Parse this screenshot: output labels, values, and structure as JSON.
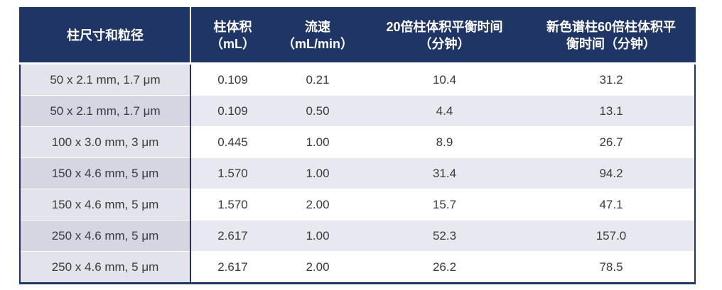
{
  "colors": {
    "header_bg": "#1f3565",
    "header_text": "#ffffff",
    "body_text": "#3a3a3c",
    "col1_odd_bg": "#e2e3eb",
    "col1_even_bg": "#d5d6e2",
    "data_odd_bg": "#ffffff",
    "data_even_bg": "#e8e9f0"
  },
  "table": {
    "headers": [
      {
        "line1": "柱尺寸和粒径",
        "line2": ""
      },
      {
        "line1": "柱体积",
        "line2": "（mL）"
      },
      {
        "line1": "流速",
        "line2": "（mL/min）"
      },
      {
        "line1": "20倍柱体积平衡时间",
        "line2": "（分钟）"
      },
      {
        "line1": "新色谱柱60倍柱体积平",
        "line2": "衡时间（分钟）"
      }
    ],
    "rows": [
      [
        "50 x 2.1 mm, 1.7 μm",
        "0.109",
        "0.21",
        "10.4",
        "31.2"
      ],
      [
        "50 x 2.1 mm, 1.7 μm",
        "0.109",
        "0.50",
        "4.4",
        "13.1"
      ],
      [
        "100 x 3.0 mm, 3 μm",
        "0.445",
        "1.00",
        "8.9",
        "26.7"
      ],
      [
        "150 x 4.6 mm, 5 μm",
        "1.570",
        "1.00",
        "31.4",
        "94.2"
      ],
      [
        "150 x 4.6 mm, 5 μm",
        "1.570",
        "2.00",
        "15.7",
        "47.1"
      ],
      [
        "250 x 4.6 mm, 5 μm",
        "2.617",
        "1.00",
        "52.3",
        "157.0"
      ],
      [
        "250 x 4.6 mm, 5 μm",
        "2.617",
        "2.00",
        "26.2",
        "78.5"
      ]
    ]
  },
  "chart_data": {
    "type": "table",
    "columns": [
      "柱尺寸和粒径",
      "柱体积（mL）",
      "流速（mL/min）",
      "20倍柱体积平衡时间（分钟）",
      "新色谱柱60倍柱体积平衡时间（分钟）"
    ],
    "rows": [
      [
        "50 x 2.1 mm, 1.7 μm",
        0.109,
        0.21,
        10.4,
        31.2
      ],
      [
        "50 x 2.1 mm, 1.7 μm",
        0.109,
        0.5,
        4.4,
        13.1
      ],
      [
        "100 x 3.0 mm, 3 μm",
        0.445,
        1.0,
        8.9,
        26.7
      ],
      [
        "150 x 4.6 mm, 5 μm",
        1.57,
        1.0,
        31.4,
        94.2
      ],
      [
        "150 x 4.6 mm, 5 μm",
        1.57,
        2.0,
        15.7,
        47.1
      ],
      [
        "250 x 4.6 mm, 5 μm",
        2.617,
        1.0,
        52.3,
        157.0
      ],
      [
        "250 x 4.6 mm, 5 μm",
        2.617,
        2.0,
        26.2,
        78.5
      ]
    ]
  }
}
